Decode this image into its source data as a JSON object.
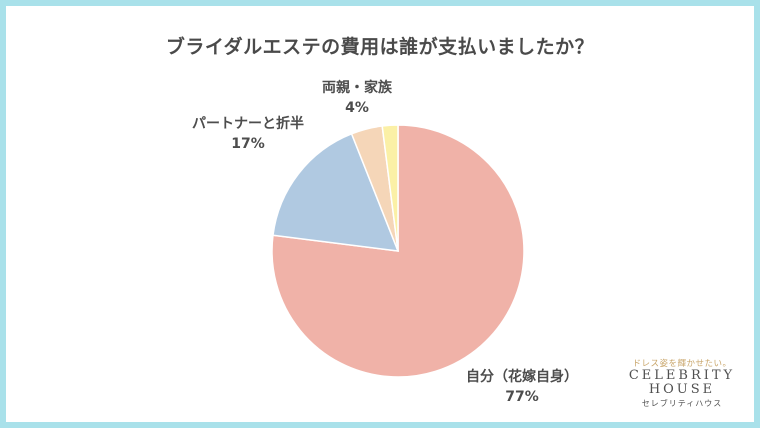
{
  "chart_data": {
    "type": "pie",
    "title": "ブライダルエステの費用は誰が支払いましたか？",
    "categories": [
      "自分（花嫁自身）",
      "パートナーと折半",
      "両親・家族",
      ""
    ],
    "values": [
      77,
      17,
      4,
      2
    ],
    "value_labels": [
      "77%",
      "17%",
      "4%",
      ""
    ],
    "colors": [
      "#f0b2a8",
      "#b0c9e1",
      "#f5d6b8",
      "#fbf0a6"
    ],
    "start": "12 o'clock",
    "direction": "clockwise"
  },
  "logo": {
    "tagline": "ドレス姿を輝かせたい。",
    "line1": "CELEBRITY",
    "line2": "HOUSE",
    "sub": "セレブリティハウス"
  },
  "colors": {
    "frame": "#a9e1ea",
    "background": "#ffffff",
    "text": "#4d4d4d"
  }
}
